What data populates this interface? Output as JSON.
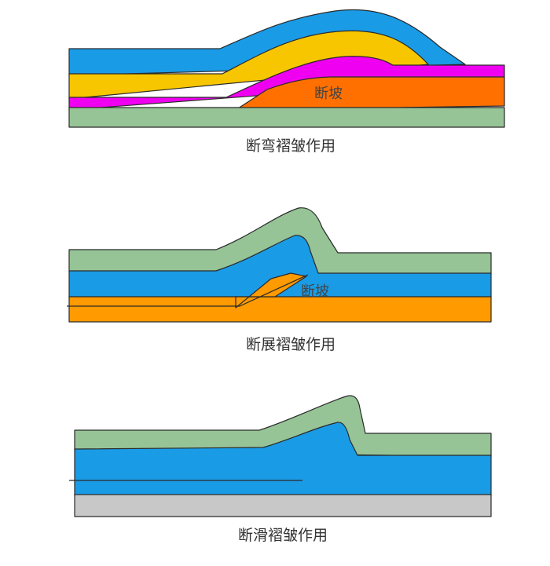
{
  "diagrams": [
    {
      "caption": "断弯褶皱作用",
      "label": "断坡"
    },
    {
      "caption": "断展褶皱作用",
      "label": "断坡"
    },
    {
      "caption": "断滑褶皱作用"
    }
  ]
}
